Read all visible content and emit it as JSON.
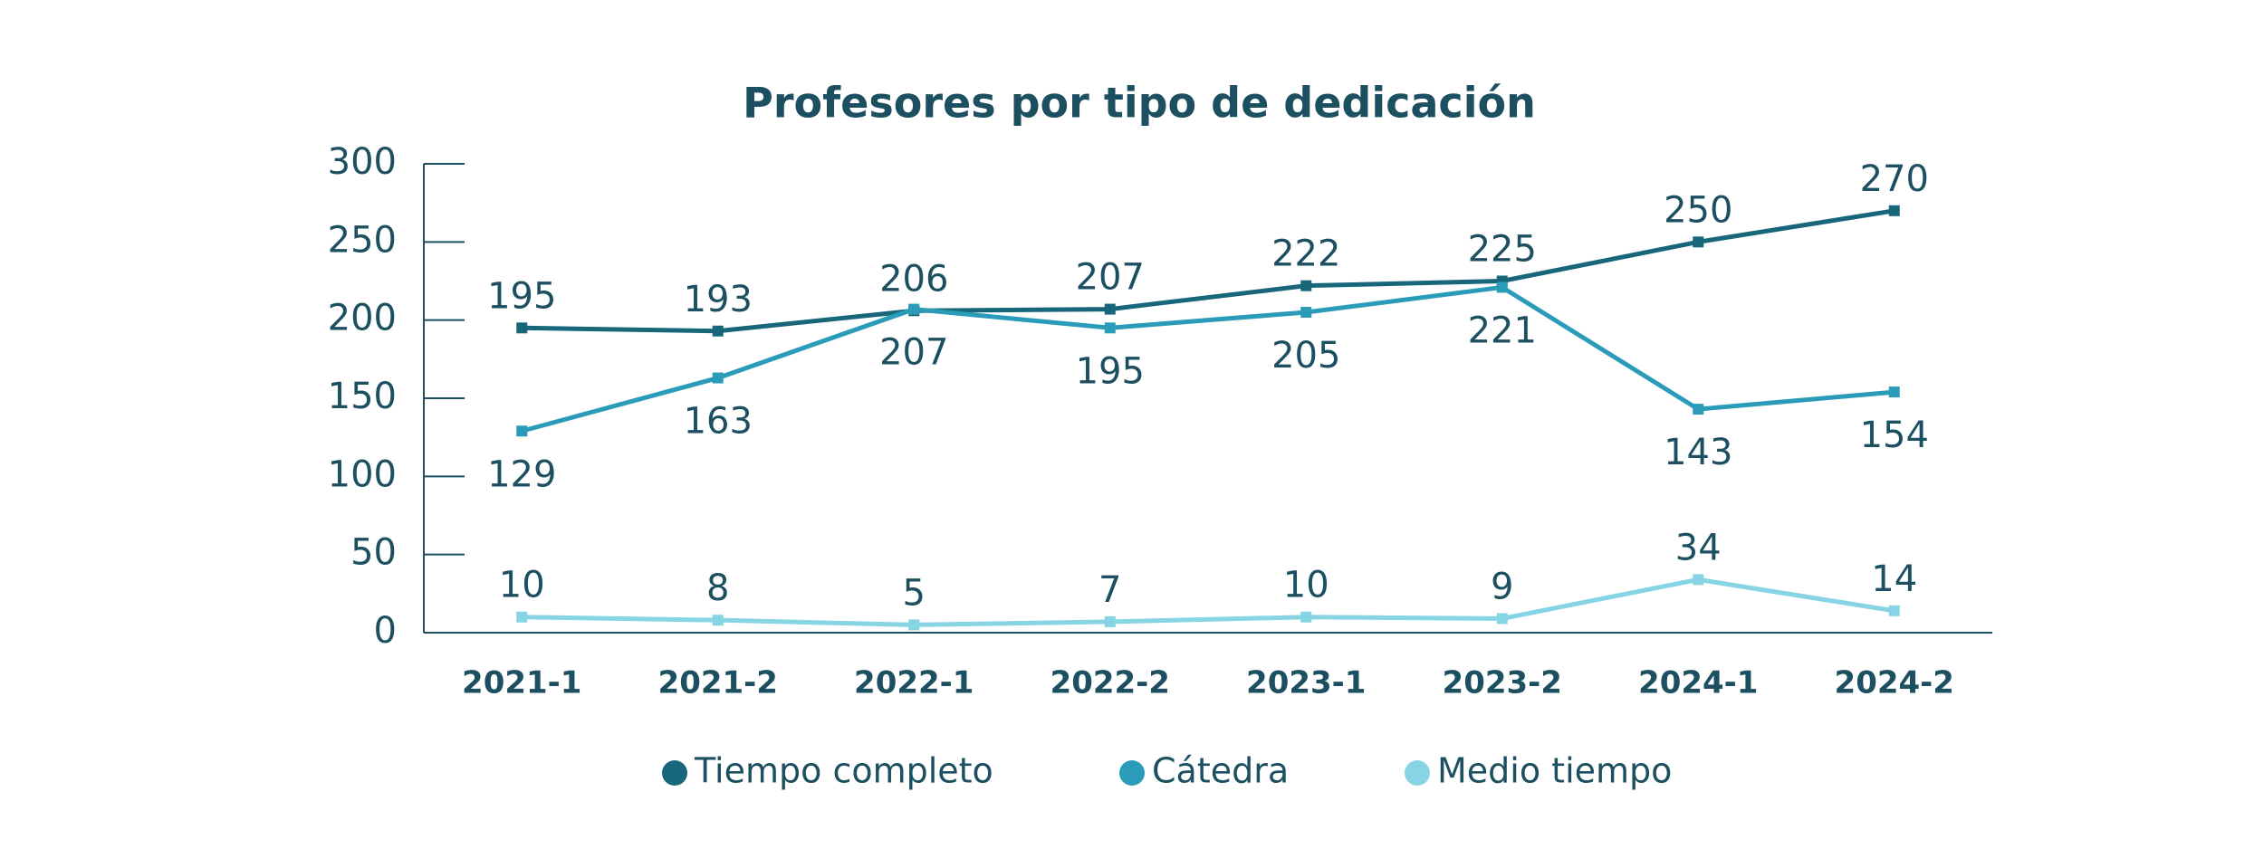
{
  "chart_data": {
    "type": "line",
    "title": "Profesores por tipo de dedicación",
    "categories": [
      "2021-1",
      "2021-2",
      "2022-1",
      "2022-2",
      "2023-1",
      "2023-2",
      "2024-1",
      "2024-2"
    ],
    "series": [
      {
        "name": "Tiempo completo",
        "color": "#17667a",
        "values": [
          195,
          193,
          206,
          207,
          222,
          225,
          250,
          270
        ]
      },
      {
        "name": "Cátedra",
        "color": "#2a9cba",
        "values": [
          129,
          163,
          207,
          195,
          205,
          221,
          143,
          154
        ]
      },
      {
        "name": "Medio tiempo",
        "color": "#86d4e4",
        "values": [
          10,
          8,
          5,
          7,
          10,
          9,
          34,
          14
        ]
      }
    ],
    "ylim": [
      0,
      300
    ],
    "yticks": [
      0,
      50,
      100,
      150,
      200,
      250,
      300
    ],
    "legend": "bottom"
  }
}
